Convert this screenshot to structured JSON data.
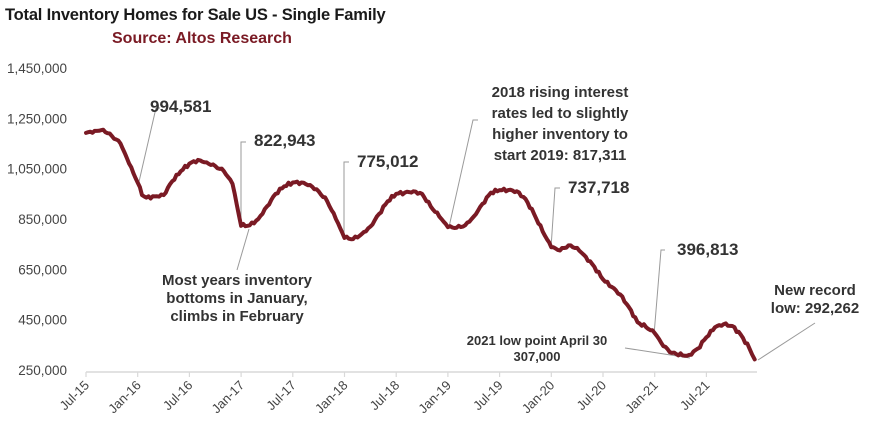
{
  "chart_data": {
    "type": "line",
    "title": "Total Inventory Homes for Sale US - Single Family",
    "subtitle": "Source: Altos Research",
    "xlabel": "",
    "ylabel": "",
    "ylim": [
      250000,
      1450000
    ],
    "yticks": [
      "1,450,000",
      "1,250,000",
      "1,050,000",
      "850,000",
      "650,000",
      "450,000",
      "250,000"
    ],
    "ytick_values": [
      1450000,
      1250000,
      1050000,
      850000,
      650000,
      450000,
      250000
    ],
    "xticks": [
      "Jul-15",
      "Jan-16",
      "Jul-16",
      "Jan-17",
      "Jul-17",
      "Jan-18",
      "Jul-18",
      "Jan-19",
      "Jul-19",
      "Jan-20",
      "Jul-20",
      "Jan-21",
      "Jul-21"
    ],
    "x_unit": "months since Jul-15",
    "grid": false,
    "legend": "none",
    "series": [
      {
        "name": "Total Inventory Single Family",
        "color": "#7a1a24",
        "x": [
          0,
          1,
          2,
          3,
          4,
          5,
          6,
          6.5,
          7,
          8,
          9,
          10,
          11,
          12,
          13,
          14,
          15,
          16,
          17,
          18,
          19,
          20,
          21,
          22,
          23,
          24,
          25,
          26,
          27,
          28,
          29,
          30,
          31,
          32,
          33,
          34,
          35,
          36,
          37,
          38,
          39,
          40,
          41,
          42,
          43,
          44,
          45,
          46,
          47,
          48,
          49,
          50,
          51,
          52,
          53,
          54,
          55,
          56,
          57,
          58,
          59,
          60,
          61,
          62,
          63,
          64,
          65,
          66,
          67,
          68,
          69.5,
          70,
          71,
          72,
          73,
          74,
          75,
          76,
          77,
          77.6
        ],
        "values": [
          1192000,
          1200000,
          1205000,
          1180000,
          1150000,
          1070000,
          994581,
          945000,
          935000,
          940000,
          945000,
          1000000,
          1040000,
          1070000,
          1085000,
          1075000,
          1060000,
          1040000,
          990000,
          822943,
          825000,
          850000,
          900000,
          950000,
          980000,
          995000,
          995000,
          985000,
          960000,
          920000,
          850000,
          775012,
          770000,
          790000,
          820000,
          870000,
          920000,
          950000,
          955000,
          960000,
          950000,
          900000,
          860000,
          817311,
          815000,
          825000,
          860000,
          910000,
          955000,
          965000,
          965000,
          960000,
          930000,
          870000,
          800000,
          737718,
          725000,
          745000,
          735000,
          700000,
          660000,
          610000,
          580000,
          550000,
          500000,
          440000,
          420000,
          396813,
          345000,
          318000,
          307000,
          310000,
          335000,
          380000,
          420000,
          432000,
          425000,
          390000,
          335000,
          292262
        ]
      }
    ],
    "annotations": [
      {
        "id": "jan16",
        "lines": [
          "994,581"
        ],
        "point_x": 6,
        "point_value": 994581
      },
      {
        "id": "jan17",
        "lines": [
          "822,943"
        ],
        "point_x": 18,
        "point_value": 822943
      },
      {
        "id": "jan18",
        "lines": [
          "775,012"
        ],
        "point_x": 30,
        "point_value": 775012
      },
      {
        "id": "jan19",
        "lines": [
          "2018 rising interest",
          "rates led to slightly",
          "higher inventory to",
          "start 2019: 817,311"
        ],
        "point_x": 42,
        "point_value": 817311
      },
      {
        "id": "jan20",
        "lines": [
          "737,718"
        ],
        "point_x": 54,
        "point_value": 737718
      },
      {
        "id": "jan21",
        "lines": [
          "396,813"
        ],
        "point_x": 66,
        "point_value": 396813
      },
      {
        "id": "note",
        "lines": [
          "Most years inventory",
          "bottoms in January,",
          "climbs in February"
        ],
        "point_x": 19,
        "point_value": 825000
      },
      {
        "id": "low2021",
        "lines": [
          "2021 low point April 30",
          "307,000"
        ],
        "point_x": 69.5,
        "point_value": 307000
      },
      {
        "id": "record",
        "lines": [
          "New record",
          "low: 292,262"
        ],
        "point_x": 77.6,
        "point_value": 292262
      }
    ]
  }
}
